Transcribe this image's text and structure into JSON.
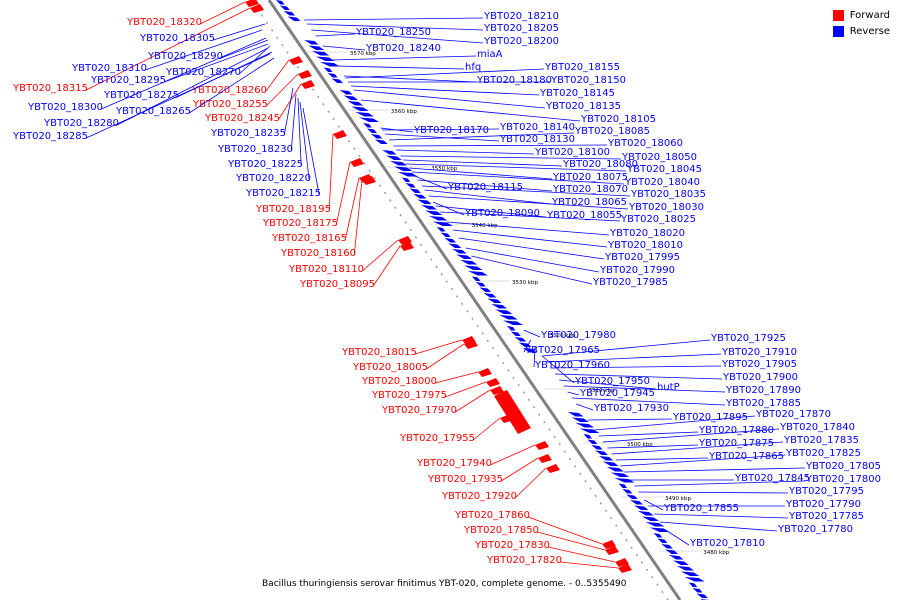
{
  "legend": {
    "forward": {
      "label": "Forward",
      "color": "#ff0000"
    },
    "reverse": {
      "label": "Reverse",
      "color": "#0000ff"
    }
  },
  "caption": "Bacillus thuringiensis serovar finitimus YBT-020, complete genome. - 0..5355490",
  "scale_labels": [
    "3570 kbp",
    "3560 kbp",
    "3550 kbp",
    "3540 kbp",
    "3530 kbp",
    "3520 kbp",
    "3510 kbp",
    "3500 kbp",
    "3490 kbp",
    "3480 kbp"
  ],
  "forward_genes": [
    "YBT020_18320",
    "YBT020_18315",
    "YBT020_18260",
    "YBT020_18255",
    "YBT020_18245",
    "YBT020_18195",
    "YBT020_18175",
    "YBT020_18165",
    "YBT020_18160",
    "YBT020_18110",
    "YBT020_18095",
    "YBT020_18015",
    "YBT020_18005",
    "YBT020_18000",
    "YBT020_17975",
    "YBT020_17970",
    "YBT020_17955",
    "YBT020_17940",
    "YBT020_17935",
    "YBT020_17920",
    "YBT020_17860",
    "YBT020_17850",
    "YBT020_17830",
    "YBT020_17820"
  ],
  "reverse_left": [
    "YBT020_18305",
    "YBT020_18290",
    "YBT020_18310",
    "YBT020_18270",
    "YBT020_18295",
    "YBT020_18275",
    "YBT020_18300",
    "YBT020_18265",
    "YBT020_18280",
    "YBT020_18285",
    "YBT020_18235",
    "YBT020_18230",
    "YBT020_18225",
    "YBT020_18220",
    "YBT020_18215"
  ],
  "reverse_right": [
    "YBT020_18250",
    "YBT020_18240",
    "YBT020_18210",
    "YBT020_18205",
    "YBT020_18200",
    "miaA",
    "hfq",
    "YBT020_18180",
    "YBT020_18155",
    "YBT020_18150",
    "YBT020_18145",
    "YBT020_18135",
    "YBT020_18105",
    "YBT020_18170",
    "YBT020_18140",
    "YBT020_18130",
    "YBT020_18085",
    "YBT020_18060",
    "YBT020_18100",
    "YBT020_18050",
    "YBT020_18080",
    "YBT020_18045",
    "YBT020_18075",
    "YBT020_18040",
    "YBT020_18115",
    "YBT020_18070",
    "YBT020_18035",
    "YBT020_18065",
    "YBT020_18030",
    "YBT020_18090",
    "YBT020_18055",
    "YBT020_18025",
    "YBT020_18020",
    "YBT020_18010",
    "YBT020_17995",
    "YBT020_17990",
    "YBT020_17985",
    "YBT020_17980",
    "YBT020_17925",
    "YBT020_17965",
    "YBT020_17910",
    "YBT020_17960",
    "YBT020_17905",
    "YBT020_17950",
    "YBT020_17900",
    "hutP",
    "YBT020_17890",
    "YBT020_17945",
    "YBT020_17885",
    "YBT020_17930",
    "YBT020_17895",
    "YBT020_17870",
    "YBT020_17880",
    "YBT020_17840",
    "YBT020_17875",
    "YBT020_17835",
    "YBT020_17865",
    "YBT020_17825",
    "YBT020_17805",
    "YBT020_17845",
    "YBT020_17800",
    "YBT020_17795",
    "YBT020_17855",
    "YBT020_17790",
    "YBT020_17785",
    "YBT020_17780",
    "YBT020_17810"
  ]
}
